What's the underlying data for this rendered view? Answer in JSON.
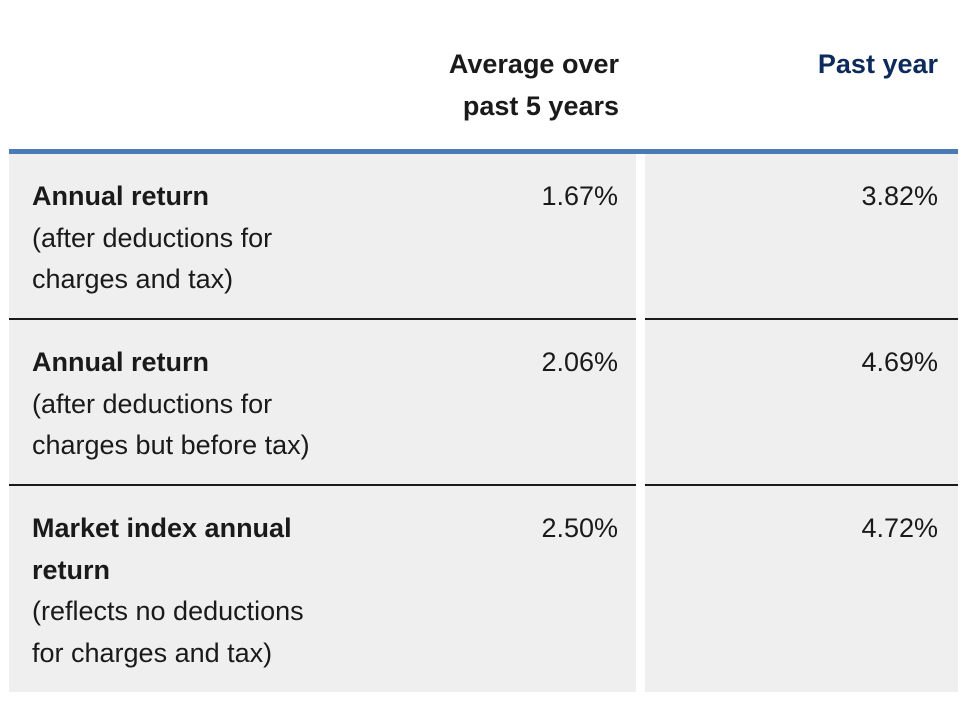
{
  "header": {
    "average_line1": "Average over",
    "average_line2": "past 5 years",
    "past_year": "Past year"
  },
  "rows": [
    {
      "title": "Annual return",
      "title_line2": "",
      "sub_line1": "(after deductions for",
      "sub_line2": "charges and tax)",
      "avg": "1.67%",
      "past": "3.82%"
    },
    {
      "title": "Annual return",
      "title_line2": "",
      "sub_line1": "(after deductions for",
      "sub_line2": "charges but before tax)",
      "avg": "2.06%",
      "past": "4.69%"
    },
    {
      "title": "Market index annual",
      "title_line2": "return",
      "sub_line1": "(reflects no deductions",
      "sub_line2": "for charges and tax)",
      "avg": "2.50%",
      "past": "4.72%"
    }
  ],
  "colors": {
    "accent": "#4a7bb7",
    "past_year_header": "#0d2a5c",
    "cell_background": "#efefef"
  }
}
